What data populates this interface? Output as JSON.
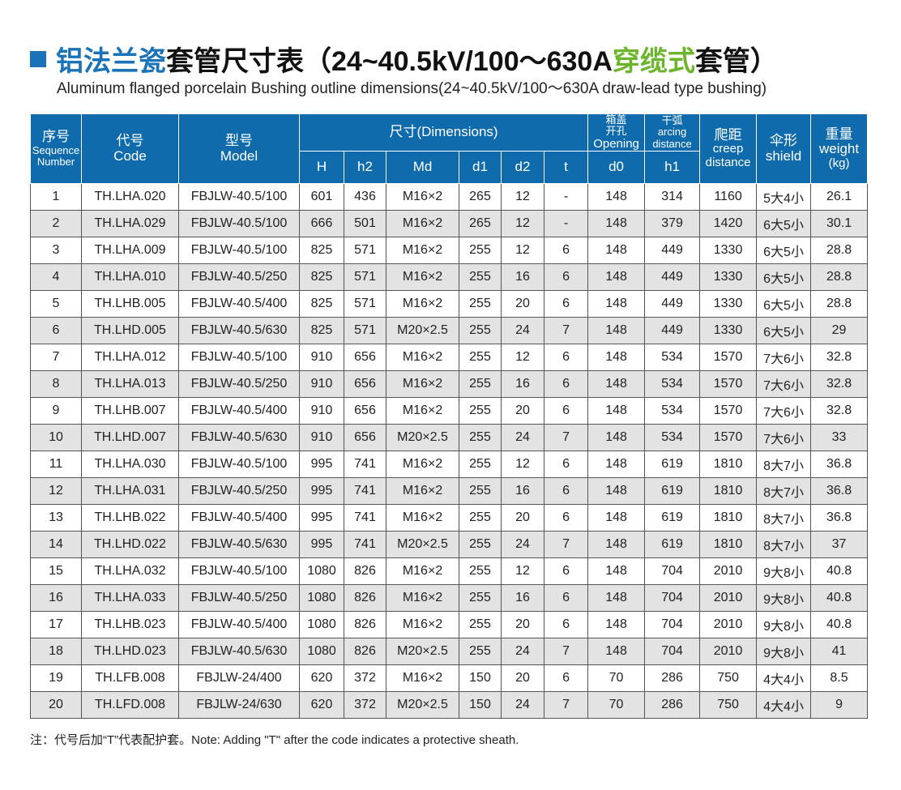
{
  "title": {
    "part1": "铝法兰瓷",
    "part2": "套管尺寸表（24~40.5kV/100～630A",
    "part3": "穿缆式",
    "part4": "套管）",
    "subtitle": "Aluminum flanged porcelain Bushing outline dimensions(24~40.5kV/100～630A draw-lead type bushing)"
  },
  "header": {
    "seq_cn": "序号",
    "seq_en1": "Sequence",
    "seq_en2": "Number",
    "code_cn": "代号",
    "code_en": "Code",
    "model_cn": "型号",
    "model_en": "Model",
    "dims": "尺寸(Dimensions)",
    "H": "H",
    "h2": "h2",
    "Md": "Md",
    "d1": "d1",
    "d2": "d2",
    "t": "t",
    "open_cn1": "箱盖",
    "open_cn2": "开孔",
    "open_en": "Opening",
    "d0": "d0",
    "arc_cn": "干弧",
    "arc_en1": "arcing",
    "arc_en2": "distance",
    "h1": "h1",
    "creep_cn": "爬距",
    "creep_en1": "creep",
    "creep_en2": "distance",
    "shield_cn": "伞形",
    "shield_en": "shield",
    "weight_cn": "重量",
    "weight_en": "weight",
    "weight_unit": "(kg)"
  },
  "rows": [
    [
      "1",
      "TH.LHA.020",
      "FBJLW-40.5/100",
      "601",
      "436",
      "M16×2",
      "265",
      "12",
      "-",
      "148",
      "314",
      "1160",
      "5大4小",
      "26.1"
    ],
    [
      "2",
      "TH.LHA.029",
      "FBJLW-40.5/100",
      "666",
      "501",
      "M16×2",
      "265",
      "12",
      "-",
      "148",
      "379",
      "1420",
      "6大5小",
      "30.1"
    ],
    [
      "3",
      "TH.LHA.009",
      "FBJLW-40.5/100",
      "825",
      "571",
      "M16×2",
      "255",
      "12",
      "6",
      "148",
      "449",
      "1330",
      "6大5小",
      "28.8"
    ],
    [
      "4",
      "TH.LHA.010",
      "FBJLW-40.5/250",
      "825",
      "571",
      "M16×2",
      "255",
      "16",
      "6",
      "148",
      "449",
      "1330",
      "6大5小",
      "28.8"
    ],
    [
      "5",
      "TH.LHB.005",
      "FBJLW-40.5/400",
      "825",
      "571",
      "M16×2",
      "255",
      "20",
      "6",
      "148",
      "449",
      "1330",
      "6大5小",
      "28.8"
    ],
    [
      "6",
      "TH.LHD.005",
      "FBJLW-40.5/630",
      "825",
      "571",
      "M20×2.5",
      "255",
      "24",
      "7",
      "148",
      "449",
      "1330",
      "6大5小",
      "29"
    ],
    [
      "7",
      "TH.LHA.012",
      "FBJLW-40.5/100",
      "910",
      "656",
      "M16×2",
      "255",
      "12",
      "6",
      "148",
      "534",
      "1570",
      "7大6小",
      "32.8"
    ],
    [
      "8",
      "TH.LHA.013",
      "FBJLW-40.5/250",
      "910",
      "656",
      "M16×2",
      "255",
      "16",
      "6",
      "148",
      "534",
      "1570",
      "7大6小",
      "32.8"
    ],
    [
      "9",
      "TH.LHB.007",
      "FBJLW-40.5/400",
      "910",
      "656",
      "M16×2",
      "255",
      "20",
      "6",
      "148",
      "534",
      "1570",
      "7大6小",
      "32.8"
    ],
    [
      "10",
      "TH.LHD.007",
      "FBJLW-40.5/630",
      "910",
      "656",
      "M20×2.5",
      "255",
      "24",
      "7",
      "148",
      "534",
      "1570",
      "7大6小",
      "33"
    ],
    [
      "11",
      "TH.LHA.030",
      "FBJLW-40.5/100",
      "995",
      "741",
      "M16×2",
      "255",
      "12",
      "6",
      "148",
      "619",
      "1810",
      "8大7小",
      "36.8"
    ],
    [
      "12",
      "TH.LHA.031",
      "FBJLW-40.5/250",
      "995",
      "741",
      "M16×2",
      "255",
      "16",
      "6",
      "148",
      "619",
      "1810",
      "8大7小",
      "36.8"
    ],
    [
      "13",
      "TH.LHB.022",
      "FBJLW-40.5/400",
      "995",
      "741",
      "M16×2",
      "255",
      "20",
      "6",
      "148",
      "619",
      "1810",
      "8大7小",
      "36.8"
    ],
    [
      "14",
      "TH.LHD.022",
      "FBJLW-40.5/630",
      "995",
      "741",
      "M20×2.5",
      "255",
      "24",
      "7",
      "148",
      "619",
      "1810",
      "8大7小",
      "37"
    ],
    [
      "15",
      "TH.LHA.032",
      "FBJLW-40.5/100",
      "1080",
      "826",
      "M16×2",
      "255",
      "12",
      "6",
      "148",
      "704",
      "2010",
      "9大8小",
      "40.8"
    ],
    [
      "16",
      "TH.LHA.033",
      "FBJLW-40.5/250",
      "1080",
      "826",
      "M16×2",
      "255",
      "16",
      "6",
      "148",
      "704",
      "2010",
      "9大8小",
      "40.8"
    ],
    [
      "17",
      "TH.LHB.023",
      "FBJLW-40.5/400",
      "1080",
      "826",
      "M16×2",
      "255",
      "20",
      "6",
      "148",
      "704",
      "2010",
      "9大8小",
      "40.8"
    ],
    [
      "18",
      "TH.LHD.023",
      "FBJLW-40.5/630",
      "1080",
      "826",
      "M20×2.5",
      "255",
      "24",
      "7",
      "148",
      "704",
      "2010",
      "9大8小",
      "41"
    ],
    [
      "19",
      "TH.LFB.008",
      "FBJLW-24/400",
      "620",
      "372",
      "M16×2",
      "150",
      "20",
      "6",
      "70",
      "286",
      "750",
      "4大4小",
      "8.5"
    ],
    [
      "20",
      "TH.LFD.008",
      "FBJLW-24/630",
      "620",
      "372",
      "M20×2.5",
      "150",
      "24",
      "7",
      "70",
      "286",
      "750",
      "4大4小",
      "9"
    ]
  ],
  "note": "注：代号后加“T”代表配护套。Note: Adding \"T\" after the code indicates a protective sheath."
}
